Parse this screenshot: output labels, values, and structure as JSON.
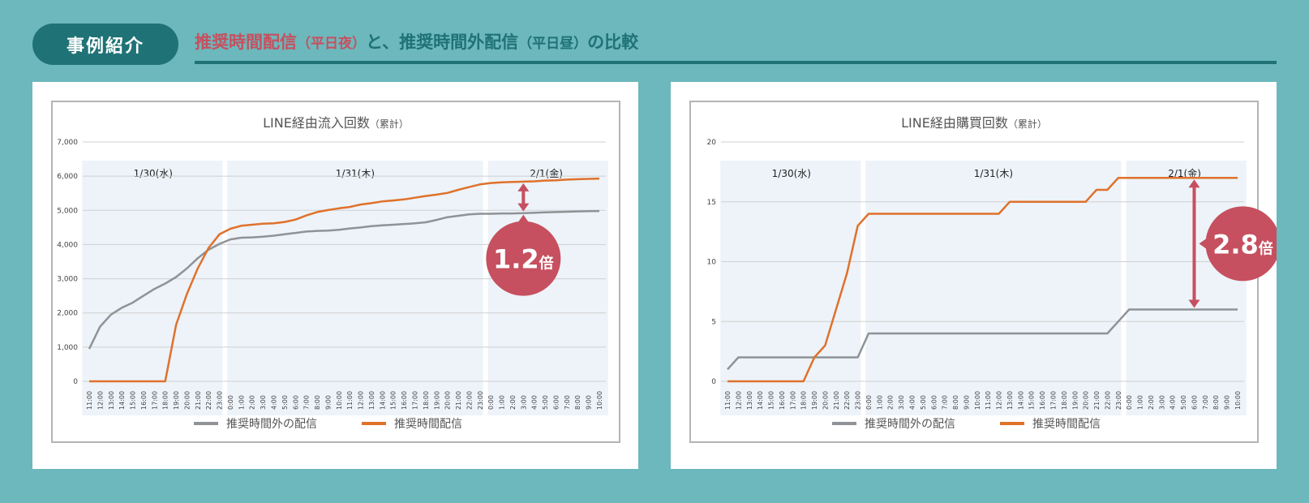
{
  "header": {
    "badge": "事例紹介",
    "title_part1": "推奨時間配信",
    "title_paren1": "（平日夜）",
    "title_part2": "と、推奨時間外配信",
    "title_paren2": "（平日昼）",
    "title_part3": "の比較"
  },
  "colors": {
    "background": "#6cb8bc",
    "accent": "#1f7276",
    "highlight": "#c6505f",
    "series_recommended": "#e0712b",
    "series_non_recommended": "#8f9296",
    "band": "#edf3f9"
  },
  "chart_data": [
    {
      "type": "line",
      "title": "LINE経由流入回数",
      "title_note": "（累計）",
      "ylim": [
        0,
        7000
      ],
      "yticks": [
        "0",
        "1,000",
        "2,000",
        "3,000",
        "4,000",
        "5,000",
        "6,000",
        "7,000"
      ],
      "x": [
        "11:00",
        "12:00",
        "13:00",
        "14:00",
        "15:00",
        "16:00",
        "17:00",
        "18:00",
        "19:00",
        "20:00",
        "21:00",
        "22:00",
        "23:00",
        "0:00",
        "1:00",
        "2:00",
        "3:00",
        "4:00",
        "5:00",
        "6:00",
        "7:00",
        "8:00",
        "9:00",
        "10:00",
        "11:00",
        "12:00",
        "13:00",
        "14:00",
        "15:00",
        "16:00",
        "17:00",
        "18:00",
        "19:00",
        "20:00",
        "21:00",
        "22:00",
        "23:00",
        "0:00",
        "1:00",
        "2:00",
        "3:00",
        "4:00",
        "5:00",
        "6:00",
        "7:00",
        "8:00",
        "9:00",
        "10:00"
      ],
      "day_bands": [
        {
          "label": "1/30(水)",
          "start": 0,
          "end": 12
        },
        {
          "label": "1/31(木)",
          "start": 13,
          "end": 36
        },
        {
          "label": "2/1(金)",
          "start": 37,
          "end": 47
        }
      ],
      "series": [
        {
          "name": "推奨時間外の配信",
          "color": "#8f9296",
          "values": [
            950,
            1600,
            1950,
            2150,
            2300,
            2500,
            2700,
            2860,
            3050,
            3300,
            3600,
            3850,
            4020,
            4150,
            4200,
            4210,
            4230,
            4260,
            4300,
            4340,
            4380,
            4400,
            4410,
            4430,
            4470,
            4500,
            4540,
            4560,
            4580,
            4600,
            4620,
            4650,
            4720,
            4800,
            4840,
            4880,
            4900,
            4900,
            4910,
            4910,
            4920,
            4930,
            4940,
            4950,
            4960,
            4970,
            4975,
            4980
          ]
        },
        {
          "name": "推奨時間配信",
          "color": "#e0712b",
          "values": [
            0,
            0,
            0,
            0,
            0,
            0,
            0,
            0,
            1650,
            2550,
            3300,
            3900,
            4300,
            4460,
            4550,
            4580,
            4610,
            4620,
            4660,
            4730,
            4850,
            4950,
            5010,
            5060,
            5100,
            5170,
            5210,
            5260,
            5290,
            5320,
            5370,
            5420,
            5460,
            5510,
            5600,
            5680,
            5760,
            5800,
            5820,
            5830,
            5840,
            5850,
            5870,
            5880,
            5900,
            5910,
            5920,
            5930
          ]
        }
      ],
      "legend": "bottom",
      "annotation": {
        "value": "1.2",
        "unit": "倍",
        "x_index": 40
      }
    },
    {
      "type": "line",
      "title": "LINE経由購買回数",
      "title_note": "（累計）",
      "ylim": [
        0,
        20
      ],
      "yticks": [
        "0",
        "5",
        "10",
        "15",
        "20"
      ],
      "x": [
        "11:00",
        "12:00",
        "13:00",
        "14:00",
        "15:00",
        "16:00",
        "17:00",
        "18:00",
        "19:00",
        "20:00",
        "21:00",
        "22:00",
        "23:00",
        "0:00",
        "1:00",
        "2:00",
        "3:00",
        "4:00",
        "5:00",
        "6:00",
        "7:00",
        "8:00",
        "9:00",
        "10:00",
        "11:00",
        "12:00",
        "13:00",
        "14:00",
        "15:00",
        "16:00",
        "17:00",
        "18:00",
        "19:00",
        "20:00",
        "21:00",
        "22:00",
        "23:00",
        "0:00",
        "1:00",
        "2:00",
        "3:00",
        "4:00",
        "5:00",
        "6:00",
        "7:00",
        "8:00",
        "9:00",
        "10:00"
      ],
      "day_bands": [
        {
          "label": "1/30(水)",
          "start": 0,
          "end": 12
        },
        {
          "label": "1/31(木)",
          "start": 13,
          "end": 36
        },
        {
          "label": "2/1(金)",
          "start": 37,
          "end": 47
        }
      ],
      "series": [
        {
          "name": "推奨時間外の配信",
          "color": "#8f9296",
          "values": [
            1,
            2,
            2,
            2,
            2,
            2,
            2,
            2,
            2,
            2,
            2,
            2,
            2,
            4,
            4,
            4,
            4,
            4,
            4,
            4,
            4,
            4,
            4,
            4,
            4,
            4,
            4,
            4,
            4,
            4,
            4,
            4,
            4,
            4,
            4,
            4,
            5,
            6,
            6,
            6,
            6,
            6,
            6,
            6,
            6,
            6,
            6,
            6
          ]
        },
        {
          "name": "推奨時間配信",
          "color": "#e0712b",
          "values": [
            0,
            0,
            0,
            0,
            0,
            0,
            0,
            0,
            2,
            3,
            6,
            9,
            13,
            14,
            14,
            14,
            14,
            14,
            14,
            14,
            14,
            14,
            14,
            14,
            14,
            14,
            15,
            15,
            15,
            15,
            15,
            15,
            15,
            15,
            16,
            16,
            17,
            17,
            17,
            17,
            17,
            17,
            17,
            17,
            17,
            17,
            17,
            17
          ]
        }
      ],
      "legend": "bottom",
      "annotation": {
        "value": "2.8",
        "unit": "倍",
        "x_index": 43
      }
    }
  ]
}
